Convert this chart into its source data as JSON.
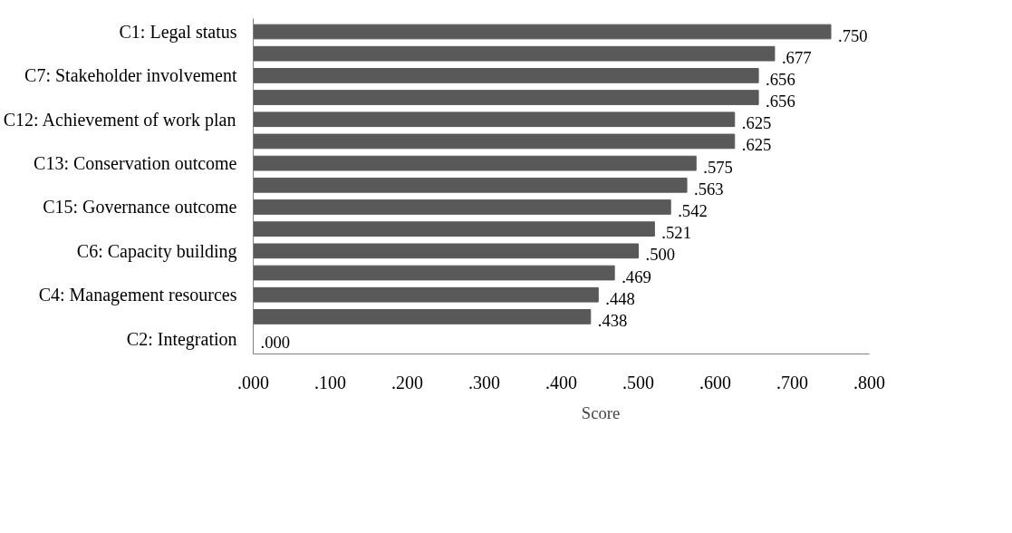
{
  "chart_data": {
    "type": "bar",
    "orientation": "horizontal",
    "categories": [
      "C1: Legal status",
      null,
      "C7: Stakeholder involvement",
      null,
      "C12: Achievement of work plan",
      null,
      "C13: Conservation outcome",
      null,
      "C15: Governance outcome",
      null,
      "C6: Capacity building",
      null,
      "C4: Management resources",
      null,
      "C2: Integration"
    ],
    "series": [
      {
        "name": "Score",
        "color": "#595959",
        "values": [
          0.75,
          0.677,
          0.656,
          0.656,
          0.625,
          0.625,
          0.575,
          0.563,
          0.542,
          0.521,
          0.5,
          0.469,
          0.448,
          0.438,
          0.0
        ],
        "value_labels": [
          ".750",
          ".677",
          ".656",
          ".656",
          ".625",
          ".625",
          ".575",
          ".563",
          ".542",
          ".521",
          ".500",
          ".469",
          ".448",
          ".438",
          ".000"
        ]
      }
    ],
    "xlim": [
      0,
      0.8
    ],
    "xticks": [
      {
        "value": 0,
        "label": ".000"
      },
      {
        "value": 0.1,
        "label": ".100"
      },
      {
        "value": 0.2,
        "label": ".200"
      },
      {
        "value": 0.3,
        "label": ".300"
      },
      {
        "value": 0.4,
        "label": ".400"
      },
      {
        "value": 0.5,
        "label": ".500"
      },
      {
        "value": 0.6,
        "label": ".600"
      },
      {
        "value": 0.7,
        "label": ".700"
      },
      {
        "value": 0.8,
        "label": ".800"
      }
    ],
    "grid": false,
    "legend": "bottom"
  }
}
